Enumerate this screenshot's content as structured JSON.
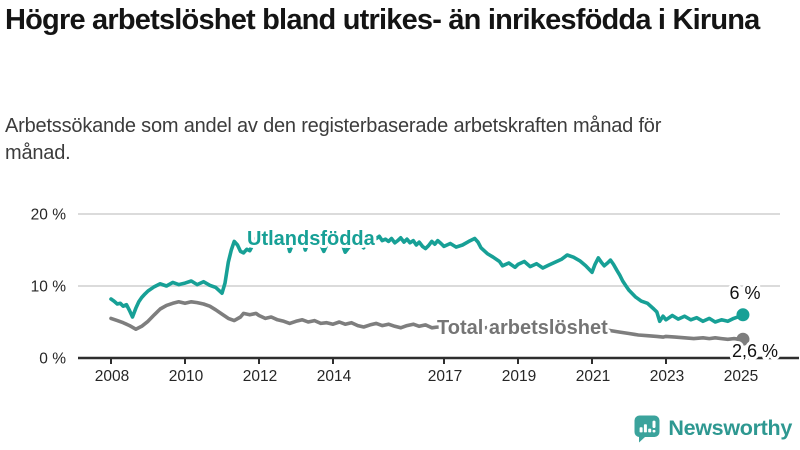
{
  "page": {
    "title": "Högre arbetslöshet bland utrikes- än inrikesfödda i Kiruna",
    "subtitle": "Arbetssökande som andel av den registerbaserade arbetskraften månad för månad.",
    "brand": {
      "name": "Newsworthy",
      "logo_icon": "newsworthy-speech-bubble-bar-chart-icon",
      "color": "#2E9891",
      "icon_color": "#3BA39C"
    }
  },
  "chart_data": {
    "type": "line",
    "title": "Högre arbetslöshet bland utrikes- än inrikesfödda i Kiruna",
    "subtitle": "Arbetssökande som andel av den registerbaserade arbetskraften månad för månad.",
    "xlabel": "",
    "ylabel": "",
    "x_unit": "year (monthly observations)",
    "y_unit": "percent of registered labour force",
    "xlim": [
      2008,
      2025.2
    ],
    "ylim": [
      0,
      20
    ],
    "grid": "horizontal",
    "legend_position": "inline-labels-on-lines",
    "yticks": [
      {
        "label": "0 %",
        "value": 0
      },
      {
        "label": "10 %",
        "value": 10
      },
      {
        "label": "20 %",
        "value": 20
      }
    ],
    "xticks": [
      {
        "label": "2008",
        "value": 2008,
        "tick": true
      },
      {
        "label": "2010",
        "value": 2010,
        "tick": true
      },
      {
        "label": "2012",
        "value": 2012,
        "tick": true
      },
      {
        "label": "2014",
        "value": 2014,
        "tick": true
      },
      {
        "label": "2017",
        "value": 2017,
        "tick": true
      },
      {
        "label": "2019",
        "value": 2019,
        "tick": true
      },
      {
        "label": "2021",
        "value": 2021,
        "tick": true
      },
      {
        "label": "2023",
        "value": 2023,
        "tick": true
      },
      {
        "label": "2025",
        "value": 2025,
        "tick": false
      }
    ],
    "style": {
      "grid_color": "#DBDBDB",
      "axis_color": "#2E2E2E",
      "axis_text_color": "#262626",
      "end_label_color": "#111111",
      "background": "#FFFFFF"
    },
    "series": [
      {
        "name": "Utlandsfödda",
        "color": "#17A096",
        "label_color": "#17A096",
        "end_label": "6 %",
        "end_value": 6.0,
        "points": [
          [
            2008.0,
            8.2
          ],
          [
            2008.08,
            7.9
          ],
          [
            2008.17,
            7.5
          ],
          [
            2008.25,
            7.6
          ],
          [
            2008.33,
            7.2
          ],
          [
            2008.42,
            7.4
          ],
          [
            2008.5,
            6.6
          ],
          [
            2008.58,
            5.7
          ],
          [
            2008.67,
            6.9
          ],
          [
            2008.75,
            7.8
          ],
          [
            2008.83,
            8.4
          ],
          [
            2008.92,
            8.9
          ],
          [
            2009.0,
            9.3
          ],
          [
            2009.17,
            9.9
          ],
          [
            2009.33,
            10.3
          ],
          [
            2009.5,
            10.0
          ],
          [
            2009.67,
            10.5
          ],
          [
            2009.83,
            10.2
          ],
          [
            2010.0,
            10.4
          ],
          [
            2010.17,
            10.7
          ],
          [
            2010.33,
            10.2
          ],
          [
            2010.5,
            10.6
          ],
          [
            2010.67,
            10.1
          ],
          [
            2010.83,
            9.8
          ],
          [
            2011.0,
            9.0
          ],
          [
            2011.08,
            10.4
          ],
          [
            2011.17,
            13.3
          ],
          [
            2011.25,
            15.0
          ],
          [
            2011.33,
            16.2
          ],
          [
            2011.42,
            15.7
          ],
          [
            2011.5,
            14.8
          ],
          [
            2011.58,
            14.6
          ],
          [
            2011.67,
            15.1
          ],
          [
            2011.75,
            14.9
          ],
          [
            2011.83,
            15.7
          ],
          [
            2011.92,
            16.7
          ],
          [
            2012.0,
            17.2
          ],
          [
            2012.08,
            17.5
          ],
          [
            2012.17,
            16.7
          ],
          [
            2012.25,
            16.1
          ],
          [
            2012.33,
            16.4
          ],
          [
            2012.42,
            15.8
          ],
          [
            2012.5,
            16.2
          ],
          [
            2012.58,
            16.4
          ],
          [
            2012.67,
            15.7
          ],
          [
            2012.75,
            16.4
          ],
          [
            2012.83,
            14.8
          ],
          [
            2012.92,
            16.0
          ],
          [
            2013.0,
            16.5
          ],
          [
            2013.08,
            15.8
          ],
          [
            2013.17,
            16.5
          ],
          [
            2013.25,
            15.0
          ],
          [
            2013.33,
            16.1
          ],
          [
            2013.42,
            16.4
          ],
          [
            2013.5,
            15.9
          ],
          [
            2013.58,
            16.3
          ],
          [
            2013.67,
            15.7
          ],
          [
            2013.75,
            14.8
          ],
          [
            2013.83,
            15.7
          ],
          [
            2013.92,
            16.2
          ],
          [
            2014.0,
            16.9
          ],
          [
            2014.08,
            17.3
          ],
          [
            2014.17,
            16.4
          ],
          [
            2014.25,
            15.8
          ],
          [
            2014.33,
            14.7
          ],
          [
            2014.42,
            15.3
          ],
          [
            2014.5,
            15.8
          ],
          [
            2014.58,
            16.2
          ],
          [
            2014.67,
            16.5
          ],
          [
            2014.75,
            15.7
          ],
          [
            2014.83,
            15.3
          ],
          [
            2014.92,
            16.0
          ],
          [
            2015.0,
            16.7
          ],
          [
            2015.08,
            17.0
          ],
          [
            2015.17,
            16.6
          ],
          [
            2015.25,
            16.9
          ],
          [
            2015.33,
            16.3
          ],
          [
            2015.42,
            16.5
          ],
          [
            2015.5,
            16.2
          ],
          [
            2015.58,
            16.6
          ],
          [
            2015.67,
            16.0
          ],
          [
            2015.75,
            16.3
          ],
          [
            2015.83,
            16.7
          ],
          [
            2015.92,
            16.1
          ],
          [
            2016.0,
            16.5
          ],
          [
            2016.08,
            16.0
          ],
          [
            2016.17,
            16.3
          ],
          [
            2016.25,
            15.7
          ],
          [
            2016.33,
            16.1
          ],
          [
            2016.42,
            15.5
          ],
          [
            2016.5,
            15.2
          ],
          [
            2016.58,
            15.6
          ],
          [
            2016.67,
            16.2
          ],
          [
            2016.75,
            15.8
          ],
          [
            2016.83,
            16.3
          ],
          [
            2016.92,
            15.9
          ],
          [
            2017.0,
            15.5
          ],
          [
            2017.17,
            15.9
          ],
          [
            2017.33,
            15.4
          ],
          [
            2017.5,
            15.7
          ],
          [
            2017.67,
            16.2
          ],
          [
            2017.83,
            16.6
          ],
          [
            2017.92,
            16.1
          ],
          [
            2018.0,
            15.3
          ],
          [
            2018.17,
            14.5
          ],
          [
            2018.33,
            14.0
          ],
          [
            2018.5,
            13.4
          ],
          [
            2018.58,
            12.8
          ],
          [
            2018.75,
            13.2
          ],
          [
            2018.92,
            12.6
          ],
          [
            2019.0,
            13.0
          ],
          [
            2019.17,
            13.4
          ],
          [
            2019.33,
            12.7
          ],
          [
            2019.5,
            13.1
          ],
          [
            2019.67,
            12.5
          ],
          [
            2019.83,
            12.9
          ],
          [
            2020.0,
            13.3
          ],
          [
            2020.17,
            13.7
          ],
          [
            2020.33,
            14.3
          ],
          [
            2020.5,
            14.0
          ],
          [
            2020.67,
            13.5
          ],
          [
            2020.83,
            12.8
          ],
          [
            2021.0,
            11.9
          ],
          [
            2021.08,
            13.0
          ],
          [
            2021.17,
            13.9
          ],
          [
            2021.25,
            13.3
          ],
          [
            2021.33,
            12.8
          ],
          [
            2021.42,
            13.2
          ],
          [
            2021.5,
            13.6
          ],
          [
            2021.58,
            13.0
          ],
          [
            2021.67,
            12.2
          ],
          [
            2021.75,
            11.5
          ],
          [
            2021.83,
            10.7
          ],
          [
            2021.92,
            10.0
          ],
          [
            2022.0,
            9.4
          ],
          [
            2022.17,
            8.5
          ],
          [
            2022.33,
            7.9
          ],
          [
            2022.5,
            7.6
          ],
          [
            2022.67,
            6.8
          ],
          [
            2022.75,
            6.4
          ],
          [
            2022.83,
            5.1
          ],
          [
            2022.92,
            5.8
          ],
          [
            2023.0,
            5.3
          ],
          [
            2023.17,
            5.9
          ],
          [
            2023.33,
            5.4
          ],
          [
            2023.5,
            5.8
          ],
          [
            2023.67,
            5.3
          ],
          [
            2023.83,
            5.6
          ],
          [
            2024.0,
            5.1
          ],
          [
            2024.17,
            5.5
          ],
          [
            2024.33,
            5.0
          ],
          [
            2024.5,
            5.3
          ],
          [
            2024.67,
            5.1
          ],
          [
            2024.83,
            5.5
          ],
          [
            2025.0,
            5.8
          ],
          [
            2025.08,
            6.0
          ]
        ]
      },
      {
        "name": "Total arbetslöshet",
        "color": "#7E7E7E",
        "label_color": "#757575",
        "end_label": "2,6 %",
        "end_value": 2.6,
        "points": [
          [
            2008.0,
            5.5
          ],
          [
            2008.17,
            5.2
          ],
          [
            2008.33,
            4.9
          ],
          [
            2008.5,
            4.5
          ],
          [
            2008.67,
            4.0
          ],
          [
            2008.83,
            4.4
          ],
          [
            2009.0,
            5.1
          ],
          [
            2009.17,
            6.0
          ],
          [
            2009.33,
            6.8
          ],
          [
            2009.5,
            7.3
          ],
          [
            2009.67,
            7.6
          ],
          [
            2009.83,
            7.8
          ],
          [
            2010.0,
            7.6
          ],
          [
            2010.17,
            7.8
          ],
          [
            2010.33,
            7.7
          ],
          [
            2010.5,
            7.5
          ],
          [
            2010.67,
            7.2
          ],
          [
            2010.83,
            6.7
          ],
          [
            2011.0,
            6.1
          ],
          [
            2011.17,
            5.5
          ],
          [
            2011.33,
            5.2
          ],
          [
            2011.5,
            5.7
          ],
          [
            2011.58,
            6.2
          ],
          [
            2011.75,
            6.0
          ],
          [
            2011.92,
            6.2
          ],
          [
            2012.0,
            5.9
          ],
          [
            2012.17,
            5.5
          ],
          [
            2012.33,
            5.7
          ],
          [
            2012.5,
            5.3
          ],
          [
            2012.67,
            5.1
          ],
          [
            2012.83,
            4.8
          ],
          [
            2013.0,
            5.1
          ],
          [
            2013.17,
            5.3
          ],
          [
            2013.33,
            5.0
          ],
          [
            2013.5,
            5.2
          ],
          [
            2013.67,
            4.8
          ],
          [
            2013.83,
            4.9
          ],
          [
            2014.0,
            4.7
          ],
          [
            2014.17,
            5.0
          ],
          [
            2014.33,
            4.7
          ],
          [
            2014.5,
            4.9
          ],
          [
            2014.67,
            4.5
          ],
          [
            2014.83,
            4.3
          ],
          [
            2015.0,
            4.6
          ],
          [
            2015.17,
            4.8
          ],
          [
            2015.33,
            4.5
          ],
          [
            2015.5,
            4.7
          ],
          [
            2015.67,
            4.4
          ],
          [
            2015.83,
            4.2
          ],
          [
            2016.0,
            4.5
          ],
          [
            2016.17,
            4.7
          ],
          [
            2016.33,
            4.4
          ],
          [
            2016.5,
            4.6
          ],
          [
            2016.67,
            4.2
          ],
          [
            2016.83,
            4.3
          ],
          [
            2017.0,
            4.2
          ],
          [
            2017.25,
            4.4
          ],
          [
            2017.5,
            4.1
          ],
          [
            2017.75,
            4.3
          ],
          [
            2018.0,
            4.1
          ],
          [
            2018.25,
            4.3
          ],
          [
            2018.5,
            4.0
          ],
          [
            2018.75,
            4.2
          ],
          [
            2019.0,
            4.0
          ],
          [
            2019.25,
            4.2
          ],
          [
            2019.5,
            3.9
          ],
          [
            2019.75,
            4.1
          ],
          [
            2020.0,
            4.2
          ],
          [
            2020.25,
            4.7
          ],
          [
            2020.5,
            4.5
          ],
          [
            2020.75,
            4.3
          ],
          [
            2021.0,
            4.1
          ],
          [
            2021.25,
            3.9
          ],
          [
            2021.5,
            3.8
          ],
          [
            2021.75,
            3.6
          ],
          [
            2022.0,
            3.4
          ],
          [
            2022.25,
            3.2
          ],
          [
            2022.5,
            3.1
          ],
          [
            2022.75,
            3.0
          ],
          [
            2022.92,
            2.9
          ],
          [
            2023.0,
            3.0
          ],
          [
            2023.25,
            2.9
          ],
          [
            2023.5,
            2.8
          ],
          [
            2023.75,
            2.7
          ],
          [
            2024.0,
            2.8
          ],
          [
            2024.17,
            2.7
          ],
          [
            2024.33,
            2.8
          ],
          [
            2024.5,
            2.7
          ],
          [
            2024.67,
            2.6
          ],
          [
            2024.83,
            2.7
          ],
          [
            2025.0,
            2.6
          ],
          [
            2025.08,
            2.6
          ]
        ]
      }
    ]
  }
}
